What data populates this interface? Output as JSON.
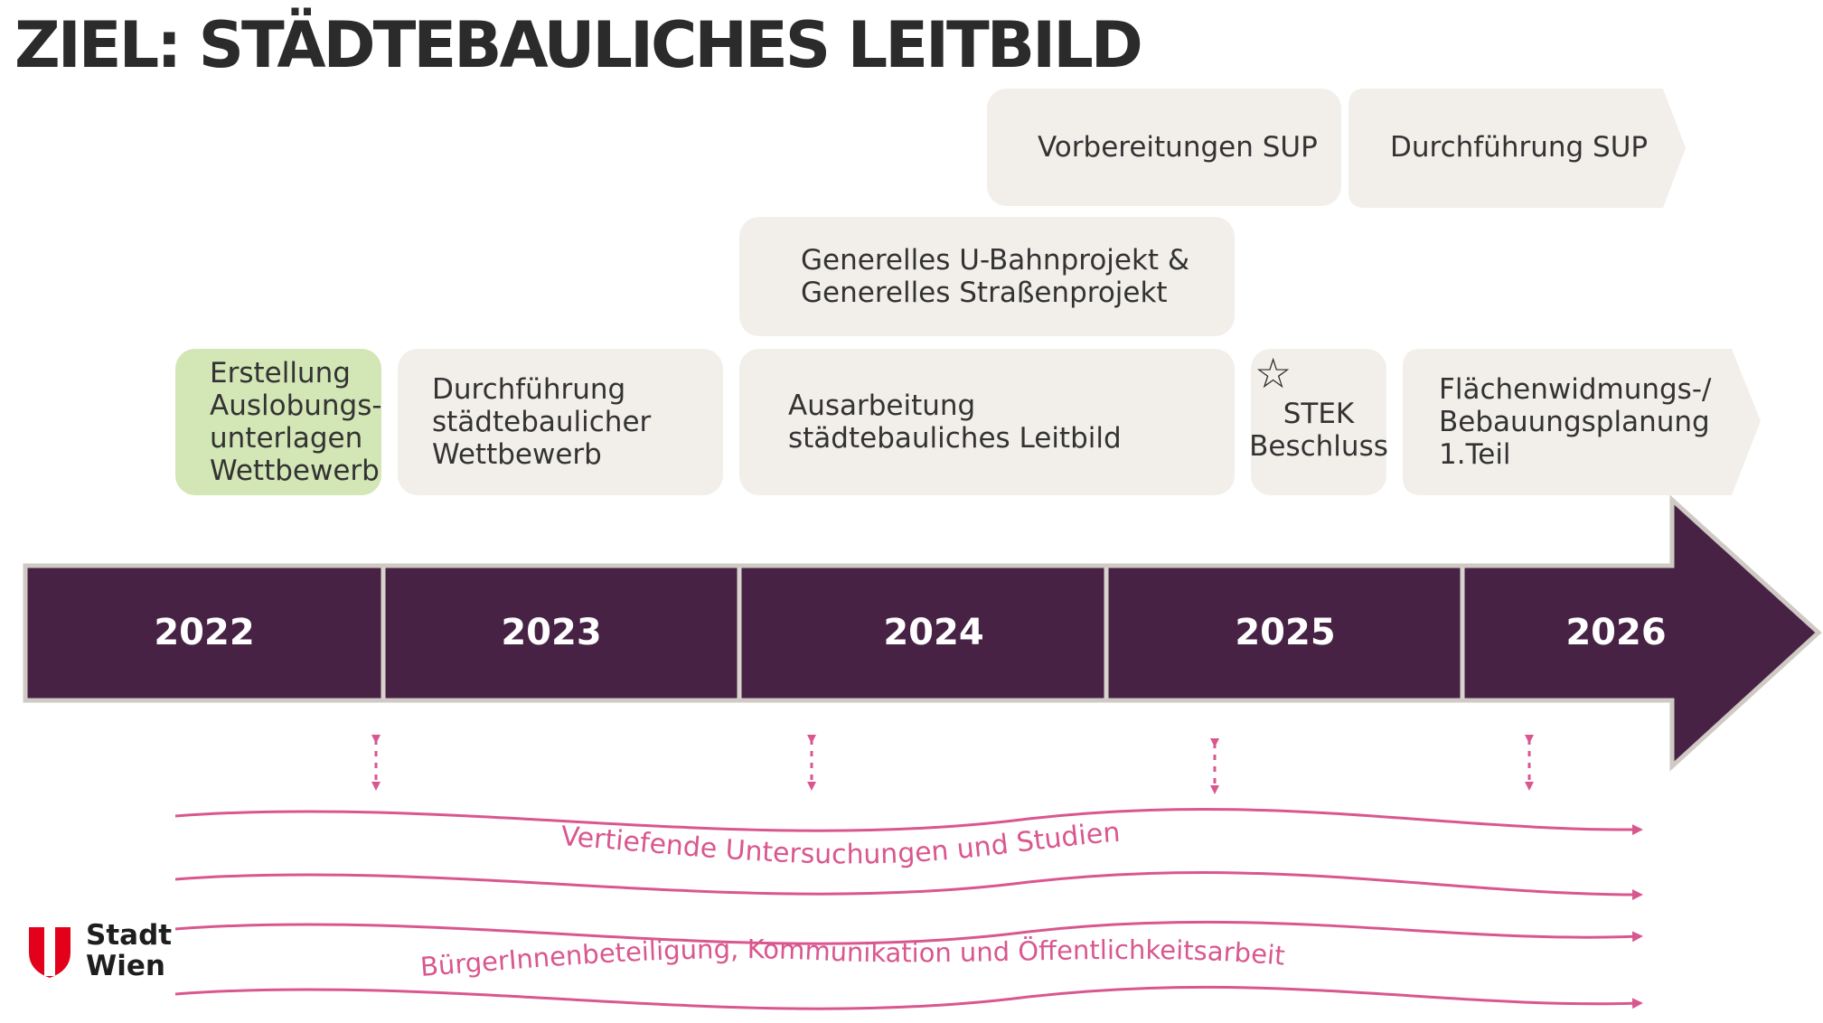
{
  "title": "ZIEL: STÄDTEBAULICHES LEITBILD",
  "top_row": [
    {
      "label": "Vorbereitungen SUP"
    },
    {
      "label": "Durchführung SUP"
    }
  ],
  "middle_row": {
    "lines": [
      "Generelles U-Bahnprojekt &",
      "Generelles Straßenprojekt"
    ]
  },
  "phases": [
    {
      "lines": [
        "Erstellung",
        "Auslobungs-",
        "unterlagen",
        "Wettbewerb"
      ]
    },
    {
      "lines": [
        "Durchführung",
        "städtebaulicher",
        "Wettbewerb"
      ]
    },
    {
      "lines": [
        "Ausarbeitung",
        "städtebauliches Leitbild"
      ]
    },
    {
      "lines": [
        "STEK",
        "Beschluss"
      ],
      "icon": "star-icon"
    },
    {
      "lines": [
        "Flächenwidmungs-/",
        "Bebauungsplanung",
        "1.Teil"
      ]
    }
  ],
  "years": [
    "2022",
    "2023",
    "2024",
    "2025",
    "2026"
  ],
  "streams": [
    "Vertiefende Untersuchungen und Studien",
    "BürgerInnenbeteiligung, Kommunikation und Öffentlichkeitsarbeit"
  ],
  "logo": {
    "line1": "Stadt",
    "line2": "Wien"
  },
  "colors": {
    "timeline": "#472245",
    "box": "#f2efeb",
    "box_highlight": "#d3e6b5",
    "waves": "#d9578f"
  }
}
